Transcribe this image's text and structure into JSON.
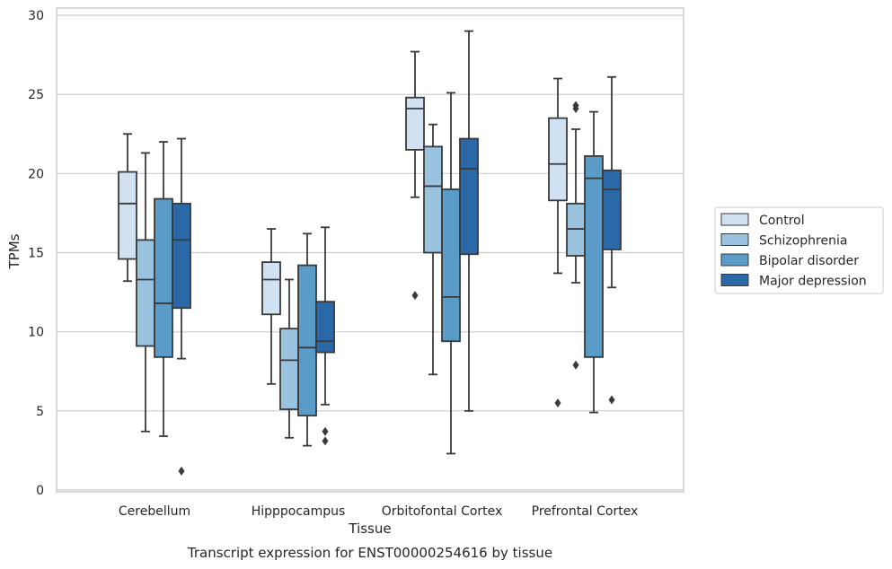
{
  "chart_data": {
    "type": "box",
    "ylabel": "TPMs",
    "xlabel": "Tissue",
    "caption": "Transcript expression for ENST00000254616 by tissue",
    "ylim": [
      0,
      30
    ],
    "yticks": [
      0,
      5,
      10,
      15,
      20,
      25,
      30
    ],
    "grid": "horizontal",
    "legend_position": "right",
    "categories": [
      "Cerebellum",
      "Hipppocampus",
      "Orbitofontal Cortex",
      "Prefrontal Cortex"
    ],
    "series": [
      {
        "name": "Control",
        "color": "#d0e2f2",
        "boxes": [
          {
            "whislo": 13.2,
            "q1": 14.6,
            "med": 18.1,
            "q3": 20.1,
            "whishi": 22.5,
            "fliers": []
          },
          {
            "whislo": 6.7,
            "q1": 11.1,
            "med": 13.3,
            "q3": 14.4,
            "whishi": 16.5,
            "fliers": []
          },
          {
            "whislo": 18.5,
            "q1": 21.5,
            "med": 24.1,
            "q3": 24.8,
            "whishi": 27.7,
            "fliers": [
              12.3
            ]
          },
          {
            "whislo": 13.7,
            "q1": 18.3,
            "med": 20.6,
            "q3": 23.5,
            "whishi": 26.0,
            "fliers": [
              5.5
            ]
          }
        ]
      },
      {
        "name": "Schizophrenia",
        "color": "#9ac3e0",
        "boxes": [
          {
            "whislo": 3.7,
            "q1": 9.1,
            "med": 13.3,
            "q3": 15.8,
            "whishi": 21.3,
            "fliers": []
          },
          {
            "whislo": 3.3,
            "q1": 5.1,
            "med": 8.2,
            "q3": 10.2,
            "whishi": 13.3,
            "fliers": []
          },
          {
            "whislo": 7.3,
            "q1": 15.0,
            "med": 19.2,
            "q3": 21.7,
            "whishi": 23.1,
            "fliers": []
          },
          {
            "whislo": 13.1,
            "q1": 14.8,
            "med": 16.5,
            "q3": 18.1,
            "whishi": 22.8,
            "fliers": [
              7.9,
              24.1,
              24.3
            ]
          }
        ]
      },
      {
        "name": "Bipolar disorder",
        "color": "#5a9bc8",
        "boxes": [
          {
            "whislo": 3.4,
            "q1": 8.4,
            "med": 11.8,
            "q3": 18.4,
            "whishi": 22.0,
            "fliers": []
          },
          {
            "whislo": 2.8,
            "q1": 4.7,
            "med": 9.0,
            "q3": 14.2,
            "whishi": 16.2,
            "fliers": []
          },
          {
            "whislo": 2.3,
            "q1": 9.4,
            "med": 12.2,
            "q3": 19.0,
            "whishi": 25.1,
            "fliers": []
          },
          {
            "whislo": 4.9,
            "q1": 8.4,
            "med": 19.7,
            "q3": 21.1,
            "whishi": 23.9,
            "fliers": []
          }
        ]
      },
      {
        "name": "Major depression",
        "color": "#2a68a8",
        "boxes": [
          {
            "whislo": 8.3,
            "q1": 11.5,
            "med": 15.8,
            "q3": 18.1,
            "whishi": 22.2,
            "fliers": [
              1.2
            ]
          },
          {
            "whislo": 5.4,
            "q1": 8.7,
            "med": 9.4,
            "q3": 11.9,
            "whishi": 16.6,
            "fliers": [
              3.1,
              3.7
            ]
          },
          {
            "whislo": 5.0,
            "q1": 14.9,
            "med": 20.3,
            "q3": 22.2,
            "whishi": 29.0,
            "fliers": []
          },
          {
            "whislo": 12.8,
            "q1": 15.2,
            "med": 19.0,
            "q3": 20.2,
            "whishi": 26.1,
            "fliers": [
              5.7
            ]
          }
        ]
      }
    ]
  }
}
